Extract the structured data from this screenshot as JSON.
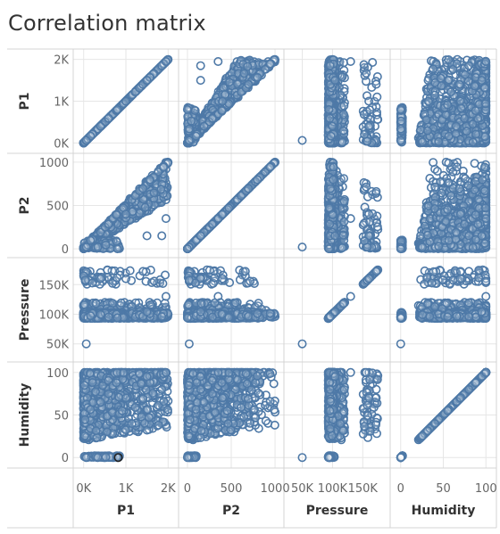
{
  "page": {
    "title": "Correlation matrix"
  },
  "chart_data": {
    "type": "scatter",
    "title": "Correlation matrix",
    "variables": [
      {
        "name": "P1",
        "domain": [
          -100,
          2100
        ],
        "ticks": [
          0,
          1000,
          2000
        ],
        "tick_labels": [
          "0K",
          "1K",
          "2K"
        ]
      },
      {
        "name": "P2",
        "domain": [
          -30,
          1030
        ],
        "ticks": [
          0,
          500,
          1000
        ],
        "tick_labels": [
          "0",
          "500",
          "1000"
        ]
      },
      {
        "name": "Pressure",
        "domain": [
          30000,
          185000
        ],
        "ticks": [
          50000,
          100000,
          150000
        ],
        "tick_labels": [
          "50K",
          "100K",
          "150K"
        ]
      },
      {
        "name": "Humidity",
        "domain": [
          -5,
          105
        ],
        "ticks": [
          0,
          50,
          100
        ],
        "tick_labels": [
          "0",
          "50",
          "100"
        ]
      }
    ],
    "grid": true,
    "marker": "hollow-circle",
    "colors": {
      "marker": "#4e79a7",
      "highlight": "#222222",
      "grid": "#e6e6e6",
      "frame": "#d4d4d4"
    },
    "approximate_sample": [
      {
        "P1": 0,
        "P2": 0,
        "Pressure": 50000,
        "Humidity": 0
      },
      {
        "P1": 250,
        "P2": 200,
        "Pressure": 98000,
        "Humidity": 55
      },
      {
        "P1": 500,
        "P2": 350,
        "Pressure": 100000,
        "Humidity": 80
      },
      {
        "P1": 800,
        "P2": 0,
        "Pressure": 95000,
        "Humidity": 0
      },
      {
        "P1": 1000,
        "P2": 500,
        "Pressure": 97000,
        "Humidity": 95
      },
      {
        "P1": 1500,
        "P2": 750,
        "Pressure": 102000,
        "Humidity": 100
      },
      {
        "P1": 2000,
        "P2": 1000,
        "Pressure": 96000,
        "Humidity": 90
      },
      {
        "P1": 200,
        "P2": 150,
        "Pressure": 150000,
        "Humidity": 60
      },
      {
        "P1": 2000,
        "P2": 400,
        "Pressure": 170000,
        "Humidity": 100
      },
      {
        "P1": 100,
        "P2": 80,
        "Pressure": 100000,
        "Humidity": 40
      }
    ]
  }
}
